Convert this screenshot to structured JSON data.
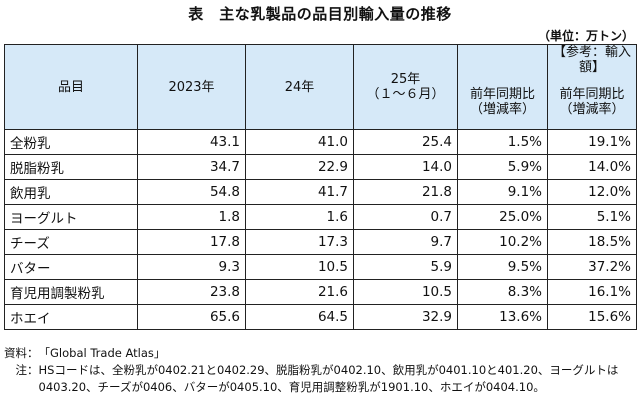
{
  "title": "表　主な乳製品の品目別輸入量の推移",
  "unit": "（単位：万トン）",
  "table": {
    "headers": {
      "item": "品目",
      "y2023": "2023年",
      "y24": "24年",
      "y25_line1": "25年",
      "y25_line2": "（１～６月）",
      "yoy_line1": "前年同期比",
      "yoy_line2": "（増減率）",
      "ref_line1": "【参考：輸入額】",
      "ref_line2": "前年同期比",
      "ref_line3": "（増減率）"
    },
    "rows": [
      {
        "name": "全粉乳",
        "y2023": "43.1",
        "y24": "41.0",
        "y25": "25.4",
        "yoy": "1.5%",
        "ref": "19.1%"
      },
      {
        "name": "脱脂粉乳",
        "y2023": "34.7",
        "y24": "22.9",
        "y25": "14.0",
        "yoy": "5.9%",
        "ref": "14.0%"
      },
      {
        "name": "飲用乳",
        "y2023": "54.8",
        "y24": "41.7",
        "y25": "21.8",
        "yoy": "9.1%",
        "ref": "12.0%"
      },
      {
        "name": "ヨーグルト",
        "y2023": "1.8",
        "y24": "1.6",
        "y25": "0.7",
        "yoy": "25.0%",
        "ref": "5.1%"
      },
      {
        "name": "チーズ",
        "y2023": "17.8",
        "y24": "17.3",
        "y25": "9.7",
        "yoy": "10.2%",
        "ref": "18.5%"
      },
      {
        "name": "バター",
        "y2023": "9.3",
        "y24": "10.5",
        "y25": "5.9",
        "yoy": "9.5%",
        "ref": "37.2%"
      },
      {
        "name": "育児用調製粉乳",
        "y2023": "23.8",
        "y24": "21.6",
        "y25": "10.5",
        "yoy": "8.3%",
        "ref": "16.1%"
      },
      {
        "name": "ホエイ",
        "y2023": "65.6",
        "y24": "64.5",
        "y25": "32.9",
        "yoy": "13.6%",
        "ref": "15.6%"
      }
    ]
  },
  "notes": {
    "source_label": "資料：",
    "source_text": "「Global Trade Atlas」",
    "note_label": "　注：",
    "note_text": "HSコードは、全粉乳が0402.21と0402.29、脱脂粉乳が0402.10、飲用乳が0401.10と401.20、ヨーグルトは0403.20、チーズが0406、バターが0405.10、育児用調整粉乳が1901.10、ホエイが0404.10。"
  },
  "colors": {
    "header_bg": "#d6e9f8",
    "border": "#222222"
  }
}
